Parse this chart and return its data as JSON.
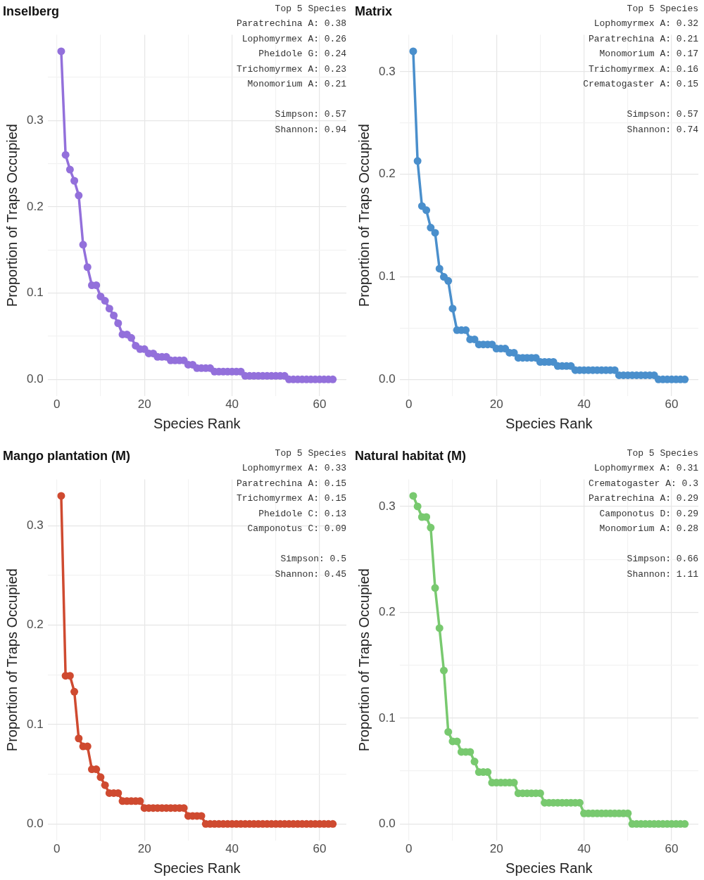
{
  "chart_data": [
    {
      "type": "line",
      "title": "Inselberg",
      "xlabel": "Species Rank",
      "ylabel": "Proportion of Traps Occupied",
      "annotations": [
        "Top 5 Species",
        "Paratrechina A: 0.38",
        "Lophomyrmex A: 0.26",
        "Pheidole G: 0.24",
        "Trichomyrmex A: 0.23",
        "Monomorium A: 0.21",
        "Simpson: 0.57",
        "Shannon: 0.94"
      ],
      "x": [
        1,
        2,
        3,
        4,
        5,
        6,
        7,
        8,
        9,
        10,
        11,
        12,
        13,
        14,
        15,
        16,
        17,
        18,
        19,
        20,
        21,
        22,
        23,
        24,
        25,
        26,
        27,
        28,
        29,
        30,
        31,
        32,
        33,
        34,
        35,
        36,
        37,
        38,
        39,
        40,
        41,
        42,
        43,
        44,
        45,
        46,
        47,
        48,
        49,
        50,
        51,
        52,
        53,
        54,
        55,
        56,
        57,
        58,
        59,
        60,
        61,
        62,
        63
      ],
      "series": [
        {
          "color": "#9370db",
          "values": [
            0.38,
            0.26,
            0.243,
            0.23,
            0.213,
            0.156,
            0.13,
            0.109,
            0.109,
            0.096,
            0.091,
            0.082,
            0.074,
            0.065,
            0.052,
            0.052,
            0.048,
            0.039,
            0.035,
            0.035,
            0.03,
            0.03,
            0.026,
            0.026,
            0.026,
            0.022,
            0.022,
            0.022,
            0.022,
            0.017,
            0.017,
            0.013,
            0.013,
            0.013,
            0.013,
            0.009,
            0.009,
            0.009,
            0.009,
            0.009,
            0.009,
            0.009,
            0.004,
            0.004,
            0.004,
            0.004,
            0.004,
            0.004,
            0.004,
            0.004,
            0.004,
            0.004,
            0,
            0,
            0,
            0,
            0,
            0,
            0,
            0,
            0,
            0,
            0
          ]
        }
      ],
      "xlim": [
        -2.1,
        66.1
      ],
      "ylim": [
        -0.019,
        0.399
      ],
      "xticks": [
        0,
        {
          "value": 10,
          "label": null
        },
        20,
        {
          "value": 30,
          "label": null
        },
        40,
        {
          "value": 50,
          "label": null
        },
        60
      ],
      "yticks": [
        {
          "value": 0,
          "label": "0.0"
        },
        {
          "value": 0.05,
          "label": null
        },
        0.1,
        {
          "value": 0.15,
          "label": null
        },
        0.2,
        {
          "value": 0.25,
          "label": null
        },
        0.3,
        {
          "value": 0.35,
          "label": null
        }
      ],
      "grid": true,
      "marker": "circle"
    },
    {
      "type": "line",
      "title": "Matrix",
      "xlabel": "Species Rank",
      "ylabel": "Proportion of Traps Occupied",
      "annotations": [
        "Top 5 Species",
        "Lophomyrmex A: 0.32",
        "Paratrechina A: 0.21",
        "Monomorium A: 0.17",
        "Trichomyrmex A: 0.16",
        "Crematogaster A: 0.15",
        "Simpson: 0.57",
        "Shannon: 0.74"
      ],
      "x": [
        1,
        2,
        3,
        4,
        5,
        6,
        7,
        8,
        9,
        10,
        11,
        12,
        13,
        14,
        15,
        16,
        17,
        18,
        19,
        20,
        21,
        22,
        23,
        24,
        25,
        26,
        27,
        28,
        29,
        30,
        31,
        32,
        33,
        34,
        35,
        36,
        37,
        38,
        39,
        40,
        41,
        42,
        43,
        44,
        45,
        46,
        47,
        48,
        49,
        50,
        51,
        52,
        53,
        54,
        55,
        56,
        57,
        58,
        59,
        60,
        61,
        62,
        63
      ],
      "series": [
        {
          "color": "#4a8fcc",
          "values": [
            0.32,
            0.213,
            0.169,
            0.165,
            0.148,
            0.143,
            0.108,
            0.1,
            0.096,
            0.069,
            0.048,
            0.048,
            0.048,
            0.039,
            0.039,
            0.034,
            0.034,
            0.034,
            0.034,
            0.03,
            0.03,
            0.03,
            0.026,
            0.026,
            0.021,
            0.021,
            0.021,
            0.021,
            0.021,
            0.017,
            0.017,
            0.017,
            0.017,
            0.013,
            0.013,
            0.013,
            0.013,
            0.009,
            0.009,
            0.009,
            0.009,
            0.009,
            0.009,
            0.009,
            0.009,
            0.009,
            0.009,
            0.004,
            0.004,
            0.004,
            0.004,
            0.004,
            0.004,
            0.004,
            0.004,
            0.004,
            0,
            0,
            0,
            0,
            0,
            0,
            0
          ]
        }
      ],
      "xlim": [
        -2.1,
        66.1
      ],
      "ylim": [
        -0.016,
        0.336
      ],
      "xticks": [
        0,
        {
          "value": 10,
          "label": null
        },
        20,
        {
          "value": 30,
          "label": null
        },
        40,
        {
          "value": 50,
          "label": null
        },
        60
      ],
      "yticks": [
        {
          "value": 0,
          "label": "0.0"
        },
        {
          "value": 0.05,
          "label": null
        },
        0.1,
        {
          "value": 0.15,
          "label": null
        },
        0.2,
        {
          "value": 0.25,
          "label": null
        },
        0.3
      ],
      "grid": true,
      "marker": "circle"
    },
    {
      "type": "line",
      "title": "Mango plantation (M)",
      "xlabel": "Species Rank",
      "ylabel": "Proportion of Traps Occupied",
      "annotations": [
        "Top 5 Species",
        "Lophomyrmex A: 0.33",
        "Paratrechina A: 0.15",
        "Trichomyrmex A: 0.15",
        "Pheidole C: 0.13",
        "Camponotus C: 0.09",
        "Simpson: 0.5",
        "Shannon: 0.45"
      ],
      "x": [
        1,
        2,
        3,
        4,
        5,
        6,
        7,
        8,
        9,
        10,
        11,
        12,
        13,
        14,
        15,
        16,
        17,
        18,
        19,
        20,
        21,
        22,
        23,
        24,
        25,
        26,
        27,
        28,
        29,
        30,
        31,
        32,
        33,
        34,
        35,
        36,
        37,
        38,
        39,
        40,
        41,
        42,
        43,
        44,
        45,
        46,
        47,
        48,
        49,
        50,
        51,
        52,
        53,
        54,
        55,
        56,
        57,
        58,
        59,
        60,
        61,
        62,
        63
      ],
      "series": [
        {
          "color": "#cf4a30",
          "values": [
            0.33,
            0.149,
            0.149,
            0.133,
            0.086,
            0.078,
            0.078,
            0.055,
            0.055,
            0.047,
            0.039,
            0.031,
            0.031,
            0.031,
            0.023,
            0.023,
            0.023,
            0.023,
            0.023,
            0.016,
            0.016,
            0.016,
            0.016,
            0.016,
            0.016,
            0.016,
            0.016,
            0.016,
            0.016,
            0.008,
            0.008,
            0.008,
            0.008,
            0,
            0,
            0,
            0,
            0,
            0,
            0,
            0,
            0,
            0,
            0,
            0,
            0,
            0,
            0,
            0,
            0,
            0,
            0,
            0,
            0,
            0,
            0,
            0,
            0,
            0,
            0,
            0,
            0,
            0
          ]
        }
      ],
      "xlim": [
        -2.1,
        66.1
      ],
      "ylim": [
        -0.0165,
        0.3465
      ],
      "xticks": [
        0,
        {
          "value": 10,
          "label": null
        },
        20,
        {
          "value": 30,
          "label": null
        },
        40,
        {
          "value": 50,
          "label": null
        },
        60
      ],
      "yticks": [
        {
          "value": 0,
          "label": "0.0"
        },
        {
          "value": 0.05,
          "label": null
        },
        0.1,
        {
          "value": 0.15,
          "label": null
        },
        0.2,
        {
          "value": 0.25,
          "label": null
        },
        0.3
      ],
      "grid": true,
      "marker": "circle"
    },
    {
      "type": "line",
      "title": "Natural habitat (M)",
      "xlabel": "Species Rank",
      "ylabel": "Proportion of Traps Occupied",
      "annotations": [
        "Top 5 Species",
        "Lophomyrmex A: 0.31",
        "Crematogaster A: 0.3",
        "Paratrechina A: 0.29",
        "Camponotus D: 0.29",
        "Monomorium A: 0.28",
        "Simpson: 0.66",
        "Shannon: 1.11"
      ],
      "x": [
        1,
        2,
        3,
        4,
        5,
        6,
        7,
        8,
        9,
        10,
        11,
        12,
        13,
        14,
        15,
        16,
        17,
        18,
        19,
        20,
        21,
        22,
        23,
        24,
        25,
        26,
        27,
        28,
        29,
        30,
        31,
        32,
        33,
        34,
        35,
        36,
        37,
        38,
        39,
        40,
        41,
        42,
        43,
        44,
        45,
        46,
        47,
        48,
        49,
        50,
        51,
        52,
        53,
        54,
        55,
        56,
        57,
        58,
        59,
        60,
        61,
        62,
        63
      ],
      "series": [
        {
          "color": "#78c96f",
          "values": [
            0.31,
            0.3,
            0.29,
            0.29,
            0.28,
            0.223,
            0.185,
            0.145,
            0.087,
            0.078,
            0.078,
            0.068,
            0.068,
            0.068,
            0.059,
            0.049,
            0.049,
            0.049,
            0.039,
            0.039,
            0.039,
            0.039,
            0.039,
            0.039,
            0.029,
            0.029,
            0.029,
            0.029,
            0.029,
            0.029,
            0.02,
            0.02,
            0.02,
            0.02,
            0.02,
            0.02,
            0.02,
            0.02,
            0.02,
            0.01,
            0.01,
            0.01,
            0.01,
            0.01,
            0.01,
            0.01,
            0.01,
            0.01,
            0.01,
            0.01,
            0,
            0,
            0,
            0,
            0,
            0,
            0,
            0,
            0,
            0,
            0,
            0,
            0
          ]
        }
      ],
      "xlim": [
        -2.1,
        66.1
      ],
      "ylim": [
        -0.0155,
        0.3255
      ],
      "xticks": [
        0,
        {
          "value": 10,
          "label": null
        },
        20,
        {
          "value": 30,
          "label": null
        },
        40,
        {
          "value": 50,
          "label": null
        },
        60
      ],
      "yticks": [
        {
          "value": 0,
          "label": "0.0"
        },
        {
          "value": 0.05,
          "label": null
        },
        0.1,
        {
          "value": 0.15,
          "label": null
        },
        0.2,
        {
          "value": 0.25,
          "label": null
        },
        0.3
      ],
      "grid": true,
      "marker": "circle"
    }
  ]
}
